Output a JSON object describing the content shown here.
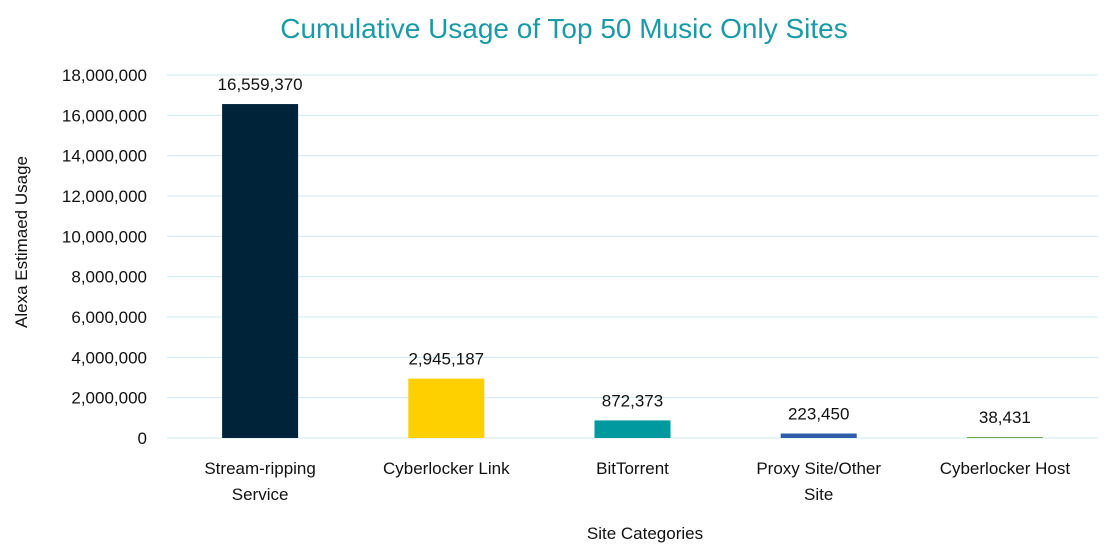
{
  "chart_data": {
    "type": "bar",
    "title": "Cumulative Usage of Top 50 Music Only Sites",
    "xlabel": "Site Categories",
    "ylabel": "Alexa Estimaed Usage",
    "ylim": [
      0,
      18000000
    ],
    "y_ticks": [
      0,
      2000000,
      4000000,
      6000000,
      8000000,
      10000000,
      12000000,
      14000000,
      16000000,
      18000000
    ],
    "y_tick_labels": [
      "0",
      "2,000,000",
      "4,000,000",
      "6,000,000",
      "8,000,000",
      "10,000,000",
      "12,000,000",
      "14,000,000",
      "16,000,000",
      "18,000,000"
    ],
    "grid": true,
    "categories": [
      [
        "Stream-ripping",
        "Service"
      ],
      [
        "Cyberlocker Link"
      ],
      [
        "BitTorrent"
      ],
      [
        "Proxy Site/Other",
        "Site"
      ],
      [
        "Cyberlocker Host"
      ]
    ],
    "values": [
      16559370,
      2945187,
      872373,
      223450,
      38431
    ],
    "value_labels": [
      "16,559,370",
      "2,945,187",
      "872,373",
      "223,450",
      "38,431"
    ],
    "colors": [
      "#00233a",
      "#ffd000",
      "#00999f",
      "#2e5eaa",
      "#70ad47"
    ]
  }
}
